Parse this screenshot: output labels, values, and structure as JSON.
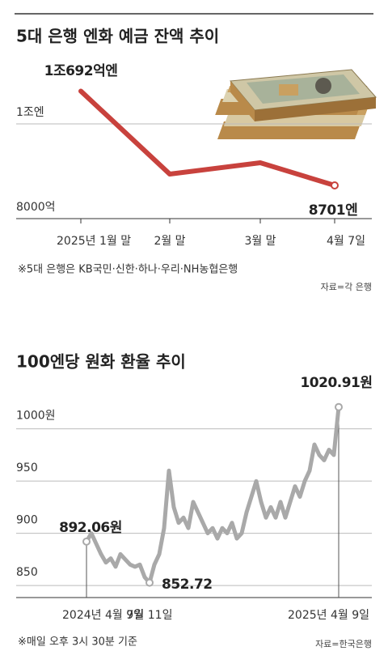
{
  "chart_data": [
    {
      "type": "line",
      "title": "5대 은행 엔화 예금 잔액 추이",
      "categories": [
        "2025년 1월 말",
        "2월 말",
        "3월 말",
        "4월 7일"
      ],
      "values": [
        10692,
        8940,
        9180,
        8701
      ],
      "value_labels": [
        "1조692억엔",
        null,
        null,
        "8701엔"
      ],
      "color": "#c8423d",
      "ylim": [
        8000,
        11000
      ],
      "yticks": [
        {
          "value": 8000,
          "label": "8000억"
        },
        {
          "value": 10000,
          "label": "1조엔"
        }
      ],
      "grid": true,
      "note": "※5대 은행은 KB국민·신한·하나·우리·NH농협은행",
      "source": "자료=각 은행"
    },
    {
      "type": "line",
      "title": "100엔당 원화 환율 추이",
      "categories": [
        "2024년 4월 9일",
        null,
        null,
        null,
        null,
        null,
        null,
        null,
        null,
        null,
        null,
        null,
        null,
        "7월 11일",
        null,
        null,
        null,
        null,
        null,
        null,
        null,
        null,
        null,
        null,
        null,
        null,
        null,
        null,
        null,
        null,
        null,
        null,
        null,
        null,
        null,
        null,
        null,
        null,
        null,
        null,
        null,
        null,
        null,
        null,
        null,
        null,
        null,
        null,
        null,
        null,
        null,
        null,
        "2025년 4월 9일"
      ],
      "values": [
        892.06,
        900,
        890,
        880,
        872,
        876,
        868,
        880,
        875,
        870,
        868,
        870,
        858,
        852.72,
        870,
        880,
        905,
        960,
        925,
        910,
        915,
        905,
        930,
        920,
        910,
        900,
        905,
        895,
        905,
        900,
        910,
        895,
        900,
        920,
        935,
        950,
        930,
        915,
        925,
        915,
        930,
        915,
        930,
        945,
        935,
        950,
        960,
        985,
        975,
        970,
        980,
        975,
        1020.91
      ],
      "value_labels": [
        "892.06원",
        null,
        null,
        null,
        null,
        null,
        null,
        null,
        null,
        null,
        null,
        null,
        null,
        "852.72",
        null,
        null,
        null,
        null,
        null,
        null,
        null,
        null,
        null,
        null,
        null,
        null,
        null,
        null,
        null,
        null,
        null,
        null,
        null,
        null,
        null,
        null,
        null,
        null,
        null,
        null,
        null,
        null,
        null,
        null,
        null,
        null,
        null,
        null,
        null,
        null,
        null,
        null,
        "1020.91원"
      ],
      "color": "#a9a9a9",
      "ylim": [
        840,
        1030
      ],
      "yticks": [
        850,
        900,
        950,
        {
          "value": 1000,
          "label": "1000원"
        }
      ],
      "grid": true,
      "note": "※매일 오후 3시 30분 기준",
      "source": "자료=한국은행"
    }
  ]
}
